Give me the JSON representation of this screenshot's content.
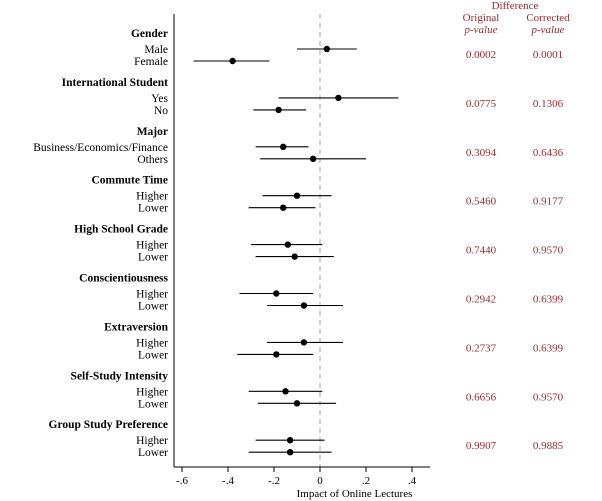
{
  "chart_data": {
    "type": "scatter",
    "subtype": "forest-plot",
    "title": "",
    "xlabel": "Impact of Online Lectures",
    "xlim": [
      -0.65,
      0.48
    ],
    "xticks": [
      -0.6,
      -0.4,
      -0.2,
      0,
      0.2,
      0.4
    ],
    "xtick_labels": [
      "-.6",
      "-.4",
      "-.2",
      "0",
      ".2",
      ".4"
    ],
    "reference_line": 0,
    "grid": false,
    "table_header": {
      "group": "Difference",
      "col1_line1": "Original",
      "col1_line2": "p-value",
      "col2_line1": "Corrected",
      "col2_line2": "p-value"
    },
    "groups": [
      {
        "name": "Gender",
        "original_p": "0.0002",
        "corrected_p": "0.0001",
        "rows": [
          {
            "label": "Male",
            "estimate": 0.03,
            "ci_low": -0.1,
            "ci_high": 0.16
          },
          {
            "label": "Female",
            "estimate": -0.38,
            "ci_low": -0.55,
            "ci_high": -0.22
          }
        ]
      },
      {
        "name": "International Student",
        "original_p": "0.0775",
        "corrected_p": "0.1306",
        "rows": [
          {
            "label": "Yes",
            "estimate": 0.08,
            "ci_low": -0.18,
            "ci_high": 0.34
          },
          {
            "label": "No",
            "estimate": -0.18,
            "ci_low": -0.29,
            "ci_high": -0.06
          }
        ]
      },
      {
        "name": "Major",
        "original_p": "0.3094",
        "corrected_p": "0.6436",
        "rows": [
          {
            "label": "Business/Economics/Finance",
            "estimate": -0.16,
            "ci_low": -0.28,
            "ci_high": -0.05
          },
          {
            "label": "Others",
            "estimate": -0.03,
            "ci_low": -0.26,
            "ci_high": 0.2
          }
        ]
      },
      {
        "name": "Commute Time",
        "original_p": "0.5460",
        "corrected_p": "0.9177",
        "rows": [
          {
            "label": "Higher",
            "estimate": -0.1,
            "ci_low": -0.25,
            "ci_high": 0.05
          },
          {
            "label": "Lower",
            "estimate": -0.16,
            "ci_low": -0.31,
            "ci_high": -0.02
          }
        ]
      },
      {
        "name": "High School Grade",
        "original_p": "0.7440",
        "corrected_p": "0.9570",
        "rows": [
          {
            "label": "Higher",
            "estimate": -0.14,
            "ci_low": -0.3,
            "ci_high": 0.01
          },
          {
            "label": "Lower",
            "estimate": -0.11,
            "ci_low": -0.28,
            "ci_high": 0.06
          }
        ]
      },
      {
        "name": "Conscientiousness",
        "original_p": "0.2942",
        "corrected_p": "0.6399",
        "rows": [
          {
            "label": "Higher",
            "estimate": -0.19,
            "ci_low": -0.35,
            "ci_high": -0.03
          },
          {
            "label": "Lower",
            "estimate": -0.07,
            "ci_low": -0.23,
            "ci_high": 0.1
          }
        ]
      },
      {
        "name": "Extraversion",
        "original_p": "0.2737",
        "corrected_p": "0.6399",
        "rows": [
          {
            "label": "Higher",
            "estimate": -0.07,
            "ci_low": -0.23,
            "ci_high": 0.1
          },
          {
            "label": "Lower",
            "estimate": -0.19,
            "ci_low": -0.36,
            "ci_high": -0.03
          }
        ]
      },
      {
        "name": "Self-Study Intensity",
        "original_p": "0.6656",
        "corrected_p": "0.9570",
        "rows": [
          {
            "label": "Higher",
            "estimate": -0.15,
            "ci_low": -0.31,
            "ci_high": 0.01
          },
          {
            "label": "Lower",
            "estimate": -0.1,
            "ci_low": -0.27,
            "ci_high": 0.07
          }
        ]
      },
      {
        "name": "Group Study Preference",
        "original_p": "0.9907",
        "corrected_p": "0.9885",
        "rows": [
          {
            "label": "Higher",
            "estimate": -0.13,
            "ci_low": -0.28,
            "ci_high": 0.02
          },
          {
            "label": "Lower",
            "estimate": -0.13,
            "ci_low": -0.31,
            "ci_high": 0.05
          }
        ]
      }
    ],
    "colors": {
      "points": "#000000",
      "ci_lines": "#000000",
      "axis": "#000000",
      "reference_line": "#b3b3b3",
      "pvalue_text": "#9b2a2e",
      "labels": "#000000"
    }
  }
}
